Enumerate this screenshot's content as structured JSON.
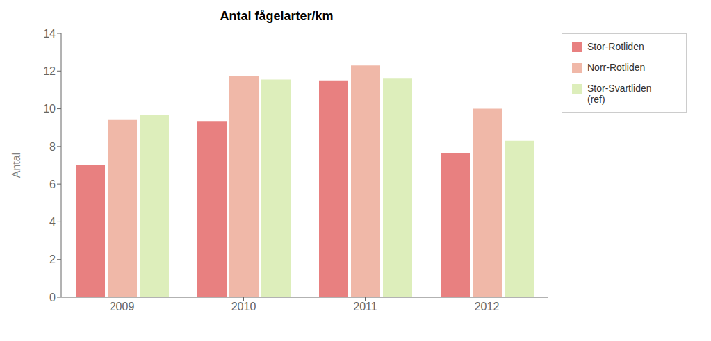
{
  "chart_data": {
    "type": "bar",
    "title": "Antal fågelarter/km",
    "ylabel": "Antal",
    "categories": [
      "2009",
      "2010",
      "2011",
      "2012"
    ],
    "series": [
      {
        "name": "Stor-Rotliden",
        "color": "#e88080",
        "values": [
          7.0,
          9.35,
          11.5,
          7.65
        ]
      },
      {
        "name": "Norr-Rotliden",
        "color": "#f0b8a8",
        "values": [
          9.4,
          11.75,
          12.3,
          10.0
        ]
      },
      {
        "name": "Stor-Svartliden\n(ref)",
        "color": "#ddeebb",
        "values": [
          9.65,
          11.55,
          11.6,
          8.3
        ]
      }
    ],
    "ylim": [
      0,
      14
    ],
    "yticks": [
      0,
      2,
      4,
      6,
      8,
      10,
      12,
      14
    ],
    "grid": false,
    "legend": "right"
  }
}
